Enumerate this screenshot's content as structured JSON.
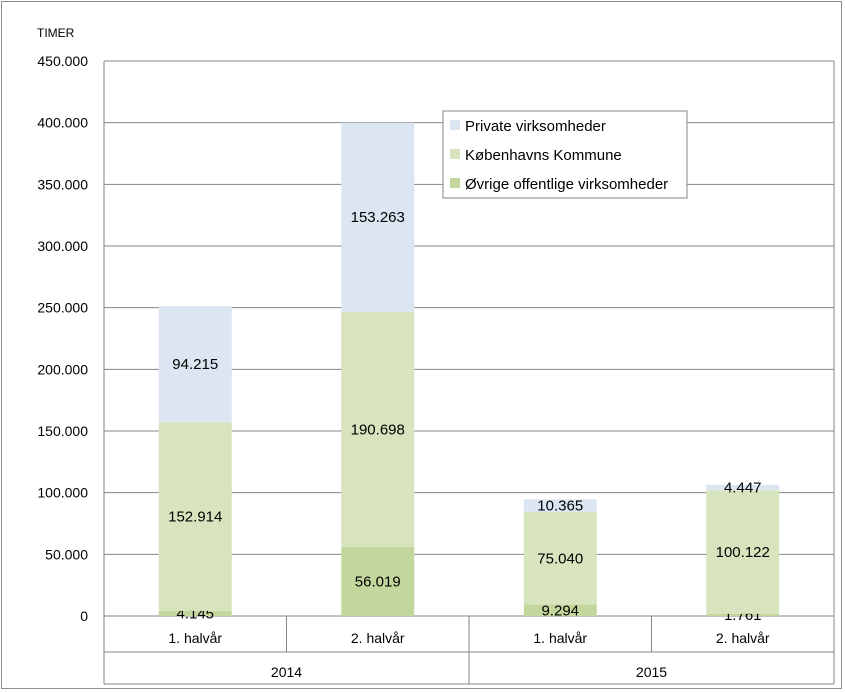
{
  "chart_data": {
    "type": "bar",
    "stacked": true,
    "ylabel": "TIMER",
    "ylim": [
      0,
      450000
    ],
    "y_ticks": [
      "0",
      "50.000",
      "100.000",
      "150.000",
      "200.000",
      "250.000",
      "300.000",
      "350.000",
      "400.000",
      "450.000"
    ],
    "grid": true,
    "legend_position": "top-right",
    "groups": [
      "2014",
      "2015"
    ],
    "categories": [
      "1. halvår",
      "2. halvår",
      "1. halvår",
      "2. halvår"
    ],
    "category_group": [
      0,
      0,
      1,
      1
    ],
    "series": [
      {
        "name": "Øvrige offentlige virksomheder",
        "color": "#c3d69b",
        "values": [
          4145,
          56019,
          9294,
          1761
        ],
        "labels": [
          "4.145",
          "56.019",
          "9.294",
          "1.761"
        ]
      },
      {
        "name": "Københavns Kommune",
        "color": "#d7e4bd",
        "values": [
          152914,
          190698,
          75040,
          100122
        ],
        "labels": [
          "152.914",
          "190.698",
          "75.040",
          "100.122"
        ]
      },
      {
        "name": "Private virksomheder",
        "color": "#dce6f2",
        "values": [
          94215,
          153263,
          10365,
          4447
        ],
        "labels": [
          "94.215",
          "153.263",
          "10.365",
          "4.447"
        ]
      }
    ]
  }
}
